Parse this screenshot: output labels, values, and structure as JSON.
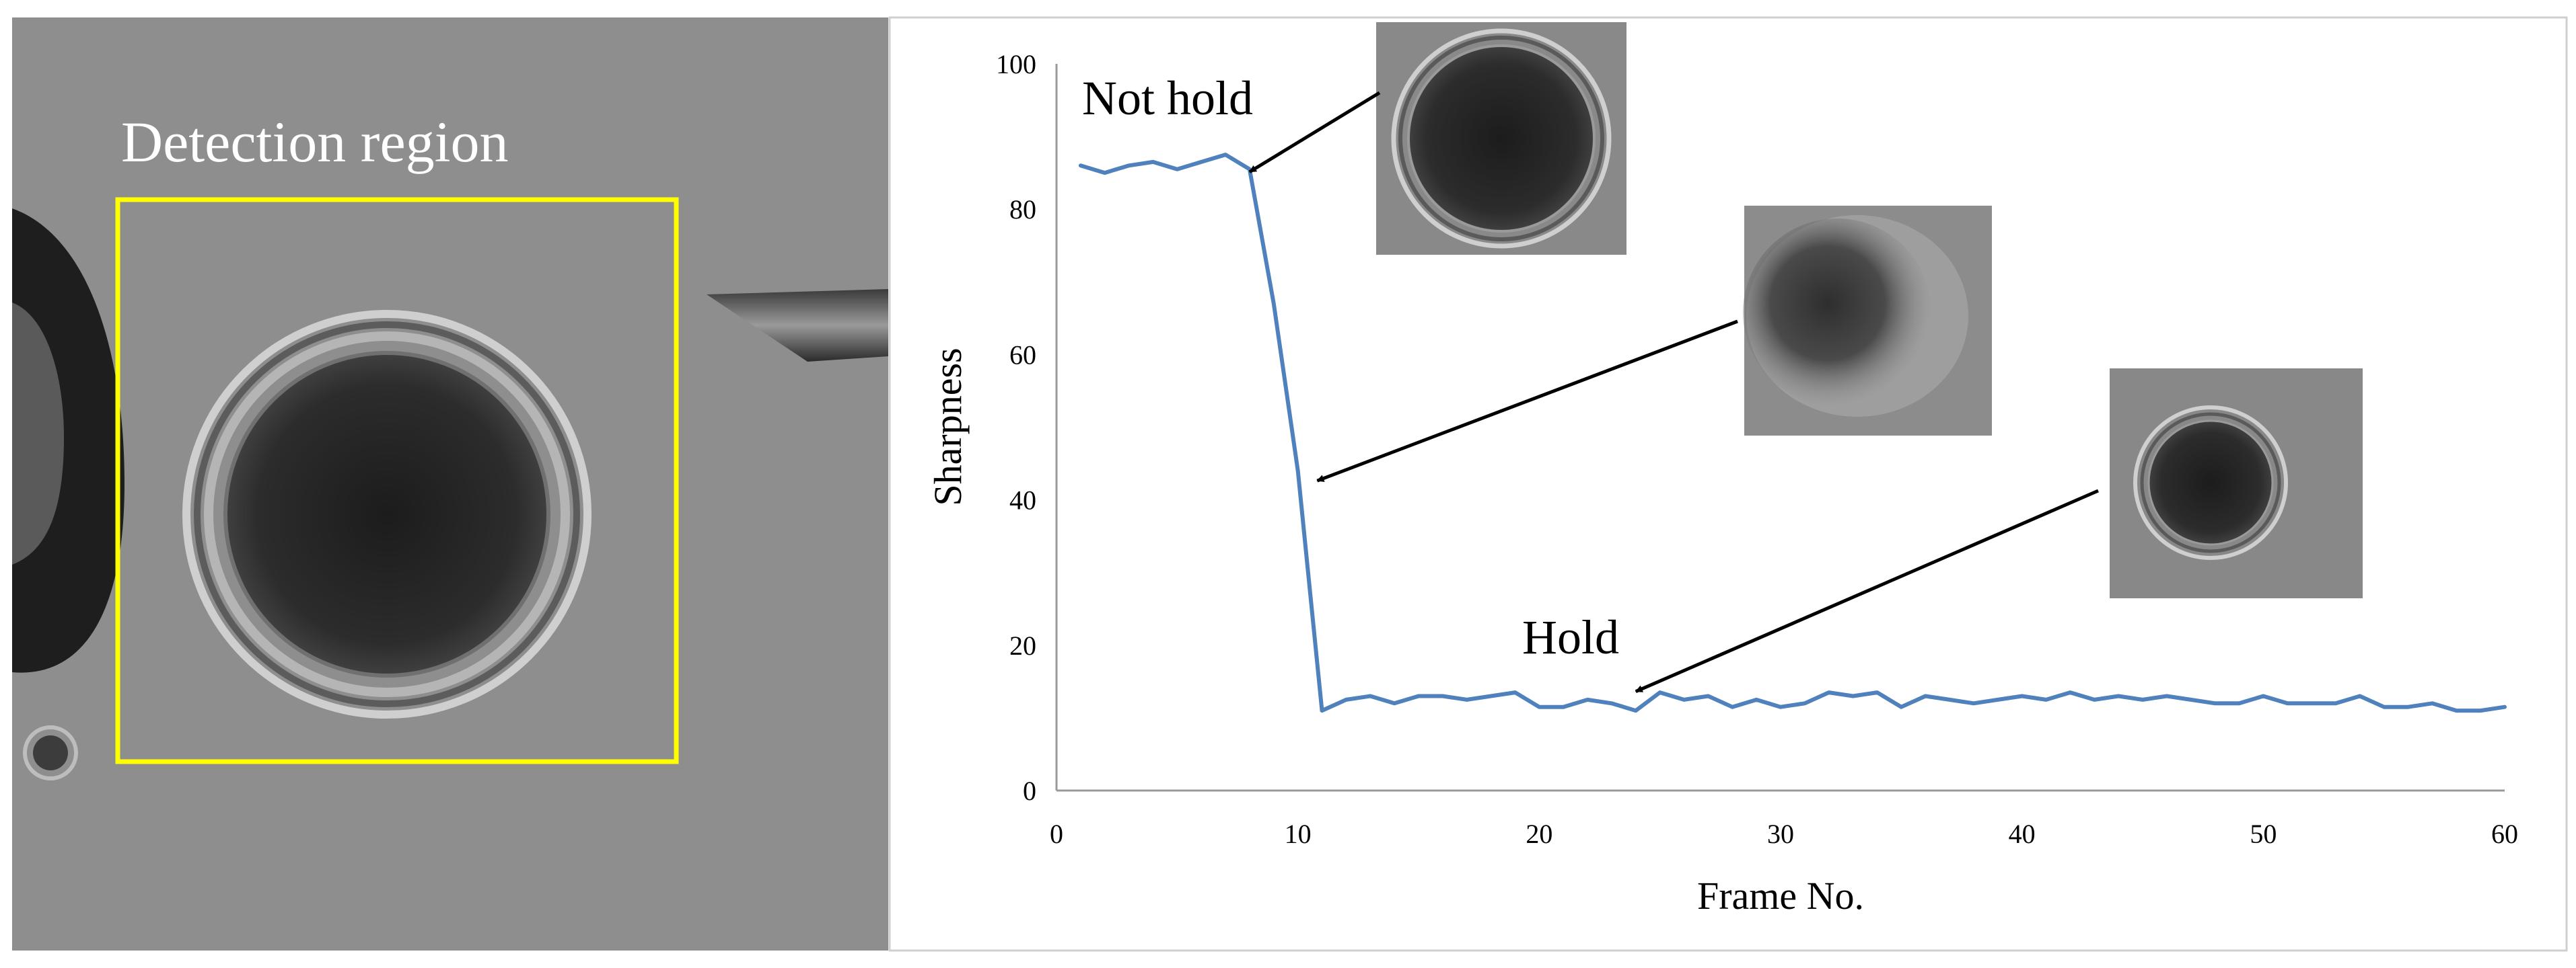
{
  "micrograph": {
    "region_label": "Detection region",
    "region_color": "#ffff00"
  },
  "chart_data": {
    "type": "line",
    "xlabel": "Frame No.",
    "ylabel": "Sharpness",
    "xlim": [
      0,
      60
    ],
    "ylim": [
      0,
      100
    ],
    "xticks": [
      "0",
      "10",
      "20",
      "30",
      "40",
      "50",
      "60"
    ],
    "yticks": [
      "0",
      "20",
      "40",
      "60",
      "80",
      "100"
    ],
    "grid": false,
    "series": [
      {
        "color": "#4f81bd",
        "x": [
          1,
          2,
          3,
          4,
          5,
          6,
          7,
          8,
          9,
          10,
          11,
          12,
          13,
          14,
          15,
          16,
          17,
          18,
          19,
          20,
          21,
          22,
          23,
          24,
          25,
          26,
          27,
          28,
          29,
          30,
          31,
          32,
          33,
          34,
          35,
          36,
          37,
          38,
          39,
          40,
          41,
          42,
          43,
          44,
          45,
          46,
          47,
          48,
          49,
          50,
          51,
          52,
          53,
          54,
          55,
          56,
          57,
          58,
          59,
          60
        ],
        "y": [
          86,
          85,
          86,
          86.5,
          85.5,
          86.5,
          87.5,
          85.5,
          67,
          44,
          11,
          12.5,
          13,
          12,
          13,
          13,
          12.5,
          13,
          13.5,
          11.5,
          11.5,
          12.5,
          12,
          11,
          13.5,
          12.5,
          13,
          11.5,
          12.5,
          11.5,
          12,
          13.5,
          13,
          13.5,
          11.5,
          13,
          12.5,
          12,
          12.5,
          13,
          12.5,
          13.5,
          12.5,
          13,
          12.5,
          13,
          12.5,
          12,
          12,
          13,
          12,
          12,
          12,
          13,
          11.5,
          11.5,
          12,
          11,
          11,
          11.5
        ]
      }
    ],
    "annotations": [
      {
        "text": "Not hold",
        "x": 8,
        "y": 85.5
      },
      {
        "text": "",
        "x": 10.8,
        "y": 43
      },
      {
        "text": "Hold",
        "x": 24,
        "y": 14
      }
    ]
  }
}
